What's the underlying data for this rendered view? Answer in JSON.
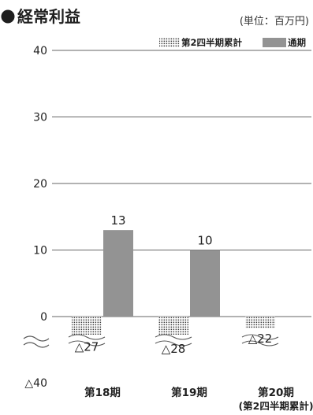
{
  "chart_data": {
    "type": "bar",
    "title": "経常利益",
    "unit": "(単位：百万円)",
    "categories": [
      {
        "label": "第18期",
        "sublabel": ""
      },
      {
        "label": "第19期",
        "sublabel": ""
      },
      {
        "label": "第20期",
        "sublabel": "(第2四半期累計)"
      }
    ],
    "series": [
      {
        "name": "第2四半期累計",
        "pattern": "dotted",
        "values": [
          -27,
          -28,
          -22
        ],
        "value_labels": [
          "△27",
          "△28",
          "△22"
        ]
      },
      {
        "name": "通期",
        "color": "#939393",
        "values": [
          13,
          10,
          null
        ],
        "value_labels": [
          "13",
          "10",
          ""
        ]
      }
    ],
    "y_ticks": [
      {
        "value": 40,
        "label": "40"
      },
      {
        "value": 30,
        "label": "30"
      },
      {
        "value": 20,
        "label": "20"
      },
      {
        "value": 10,
        "label": "10"
      },
      {
        "value": 0,
        "label": "0"
      },
      {
        "value": -40,
        "label": "△40"
      }
    ],
    "ylim": [
      -40,
      40
    ],
    "axis_break": true,
    "grid": true,
    "legend_position": "top-right"
  }
}
